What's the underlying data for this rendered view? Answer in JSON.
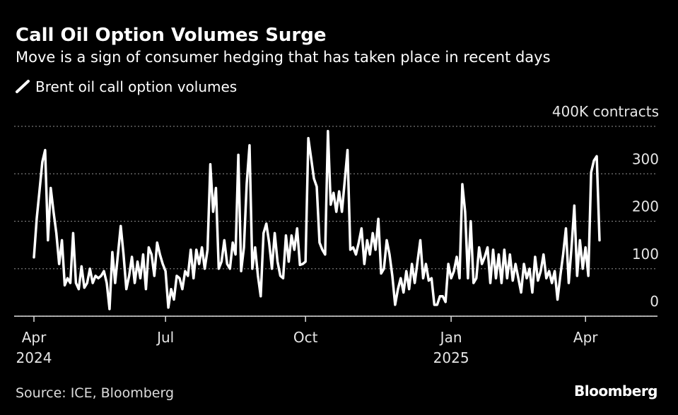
{
  "chart_data": {
    "type": "line",
    "title": "Call Oil Option Volumes Surge",
    "subtitle": "Move is a sign of consumer hedging that has taken place in recent days",
    "source": "Source: ICE, Bloomberg",
    "brand": "Bloomberg",
    "categories": [
      "Apr 2024",
      null,
      null,
      null,
      null,
      null,
      null,
      null,
      null,
      null,
      null,
      null,
      null,
      null,
      null,
      null,
      null,
      null,
      null,
      null,
      null,
      null,
      null,
      null,
      null,
      null,
      null,
      null,
      null,
      null,
      null,
      null,
      null,
      null,
      null,
      null,
      null,
      null,
      null,
      null,
      null,
      null,
      null,
      null,
      null,
      null,
      null,
      "Jul",
      null,
      null,
      null,
      null,
      null,
      null,
      null,
      null,
      null,
      null,
      null,
      null,
      null,
      null,
      null,
      null,
      null,
      null,
      null,
      null,
      null,
      null,
      null,
      null,
      null,
      null,
      null,
      null,
      null,
      null,
      null,
      null,
      null,
      null,
      null,
      null,
      null,
      null,
      null,
      null,
      null,
      null,
      null,
      null,
      null,
      null,
      null,
      null,
      null,
      "Oct",
      null,
      null,
      null,
      null,
      null,
      null,
      null,
      null,
      null,
      null,
      null,
      null,
      null,
      null,
      null,
      null,
      null,
      null,
      null,
      null,
      null,
      null,
      null,
      null,
      null,
      null,
      null,
      null,
      null,
      null,
      null,
      null,
      null,
      null,
      null,
      null,
      null,
      null,
      null,
      null,
      null,
      null,
      null,
      null,
      null,
      null,
      null,
      null,
      null,
      null,
      null,
      "Jan 2025",
      null,
      null,
      null,
      null,
      null,
      null,
      null,
      null,
      null,
      null,
      null,
      null,
      null,
      null,
      null,
      null,
      null,
      null,
      null,
      null,
      null,
      null,
      null,
      null,
      null,
      null,
      null,
      null,
      null,
      null,
      null,
      null,
      null,
      null,
      null,
      null,
      null,
      null,
      null,
      null,
      null,
      null,
      null,
      null,
      null,
      null,
      null,
      "Apr",
      null,
      null,
      null,
      null,
      null
    ],
    "series": [
      {
        "name": "Brent oil call option volumes",
        "color": "#ffffff",
        "values": [
          124,
          206,
          265,
          325,
          350,
          160,
          270,
          220,
          175,
          110,
          160,
          65,
          80,
          70,
          175,
          70,
          57,
          105,
          60,
          70,
          100,
          70,
          85,
          80,
          85,
          95,
          70,
          15,
          135,
          70,
          130,
          190,
          130,
          57,
          85,
          125,
          70,
          115,
          80,
          130,
          57,
          145,
          130,
          85,
          155,
          130,
          110,
          95,
          18,
          57,
          35,
          85,
          80,
          57,
          95,
          85,
          140,
          80,
          140,
          110,
          145,
          100,
          140,
          320,
          220,
          270,
          100,
          115,
          160,
          110,
          100,
          155,
          130,
          340,
          95,
          145,
          280,
          360,
          100,
          145,
          85,
          42,
          175,
          195,
          155,
          100,
          175,
          115,
          85,
          80,
          170,
          115,
          170,
          140,
          185,
          108,
          110,
          115,
          375,
          333,
          290,
          273,
          155,
          140,
          130,
          390,
          235,
          260,
          220,
          263,
          220,
          285,
          350,
          140,
          145,
          130,
          155,
          185,
          110,
          160,
          130,
          175,
          140,
          205,
          90,
          100,
          160,
          130,
          85,
          24,
          57,
          80,
          50,
          95,
          57,
          110,
          70,
          115,
          160,
          80,
          110,
          75,
          80,
          24,
          24,
          42,
          42,
          30,
          110,
          80,
          95,
          125,
          80,
          278,
          220,
          80,
          200,
          70,
          80,
          145,
          110,
          125,
          145,
          70,
          140,
          80,
          130,
          70,
          140,
          80,
          130,
          75,
          110,
          80,
          50,
          110,
          80,
          100,
          50,
          125,
          75,
          95,
          130,
          80,
          95,
          70,
          95,
          35,
          85,
          130,
          185,
          70,
          145,
          233,
          85,
          160,
          100,
          145,
          85,
          303,
          328,
          337,
          160
        ]
      }
    ],
    "ylim": [
      0,
      400
    ],
    "yticks": [
      0,
      100,
      200,
      300,
      {
        "value": 400,
        "label": "400K contracts"
      }
    ],
    "grid": true
  }
}
